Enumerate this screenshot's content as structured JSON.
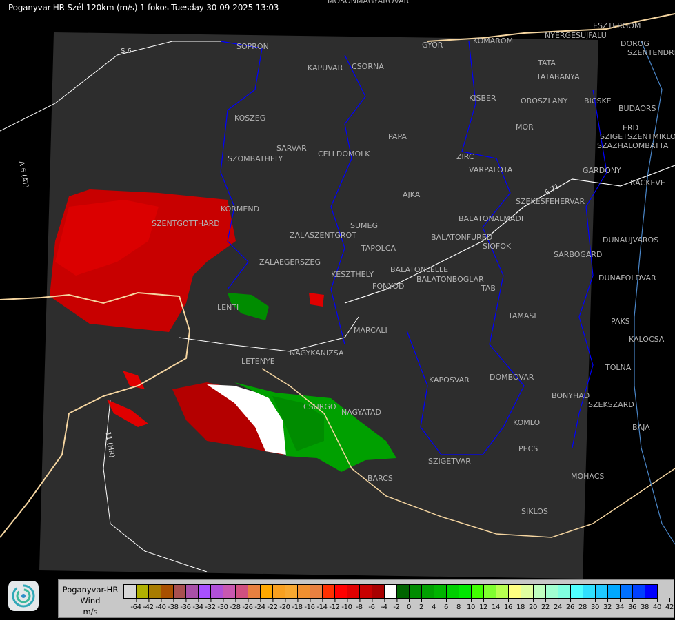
{
  "header": {
    "title": "Poganyvar-HR Szél 120km (m/s) 1 fokos Tuesday 30-09-2025 13:03"
  },
  "map": {
    "cities": [
      "SOPRON",
      "KAPUVAR",
      "CSORNA",
      "MOSONMAGYAROVAR",
      "GYOR",
      "KOMAROM",
      "ESZTERGOM",
      "NYERGESUJFALU",
      "DOROG",
      "SZENTENDRE",
      "TATA",
      "TATABANYA",
      "KISBER",
      "OROSZLANY",
      "BICSKE",
      "BUDAORS",
      "ERD",
      "SZIGETSZENTMIKLOS",
      "SZAZHALOMBATTA",
      "MOR",
      "ZIRC",
      "VARPALOTA",
      "SZEKESFEHERVAR",
      "GARDONY",
      "RACKEVE",
      "PAPA",
      "CELLDOMOLK",
      "SARVAR",
      "SZOMBATHELY",
      "KOSZEG",
      "AJKA",
      "KORMEND",
      "SZENTGOTTHARD",
      "ZALASZENTGROT",
      "SUMEG",
      "TAPOLCA",
      "BALATONALMADI",
      "BALATONFURED",
      "SIOFOK",
      "ZALAEGERSZEG",
      "KESZTHELY",
      "BALATONLELLE",
      "FONYOD",
      "BALATONBOGLAR",
      "LENTI",
      "TAB",
      "TAMASI",
      "MARCALI",
      "DUNAUJVAROS",
      "SARBOGARD",
      "DUNAFOLDVAR",
      "PAKS",
      "KALOCSA",
      "NAGYKANIZSA",
      "LETENYE",
      "KAPOSVAR",
      "DOMBOVAR",
      "BONYHAD",
      "TOLNA",
      "SZEKSZARD",
      "CSURGO",
      "NAGYATAD",
      "KOMLO",
      "BAJA",
      "PECS",
      "SZIGETVAR",
      "MOHACS",
      "BARCS",
      "SIKLOS"
    ],
    "roads": [
      "S 6",
      "A 6 (AT)",
      "11 (HR)",
      "E 71"
    ],
    "colors": {
      "background": "#000000",
      "radar_area": "#2d2d2d",
      "border": "#0000ff",
      "river": "#4a86c8",
      "road": "#ffffff",
      "country_border": "#f5d5a0"
    }
  },
  "legend": {
    "name": "Poganyvar-HR",
    "quantity": "Wind",
    "unit": "m/s",
    "labels": [
      "-64",
      "-42",
      "-40",
      "-38",
      "-36",
      "-34",
      "-32",
      "-30",
      "-28",
      "-26",
      "-24",
      "-22",
      "-20",
      "-18",
      "-16",
      "-14",
      "-12",
      "-10",
      "-8",
      "-6",
      "-4",
      "-2",
      "0",
      "2",
      "4",
      "6",
      "8",
      "10",
      "12",
      "14",
      "16",
      "18",
      "20",
      "22",
      "24",
      "26",
      "28",
      "30",
      "32",
      "34",
      "36",
      "38",
      "40",
      "42"
    ],
    "colors": [
      "#d8d8d8",
      "#b0b000",
      "#a87c00",
      "#a85000",
      "#a85050",
      "#a850a8",
      "#a850ff",
      "#b050d8",
      "#c858b0",
      "#d05080",
      "#e88040",
      "#ffa800",
      "#f8a020",
      "#f8a830",
      "#f09030",
      "#e88040",
      "#ff3000",
      "#ff0000",
      "#e00000",
      "#c80000",
      "#a80000",
      "#ffffff",
      "#006400",
      "#008c00",
      "#00a000",
      "#00b400",
      "#00d000",
      "#00e800",
      "#40ff00",
      "#80ff30",
      "#b8ff50",
      "#ffff80",
      "#e0ffa0",
      "#c0ffc0",
      "#a0ffd0",
      "#80ffe0",
      "#50ffff",
      "#30e0ff",
      "#20c8ff",
      "#00a8ff",
      "#0070ff",
      "#0040ff",
      "#0000ff"
    ]
  }
}
